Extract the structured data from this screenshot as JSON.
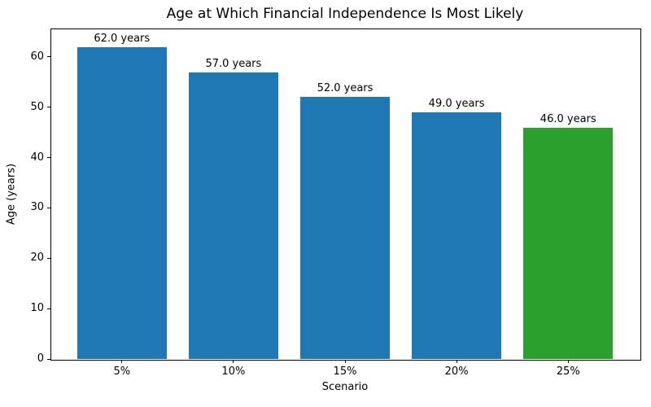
{
  "chart_data": {
    "type": "bar",
    "title": "Age at Which Financial Independence Is Most Likely",
    "xlabel": "Scenario",
    "ylabel": "Age (years)",
    "categories": [
      "5%",
      "10%",
      "15%",
      "20%",
      "25%"
    ],
    "values": [
      62.0,
      57.0,
      52.0,
      49.0,
      46.0
    ],
    "bar_labels": [
      "62.0 years",
      "57.0 years",
      "52.0 years",
      "49.0 years",
      "46.0 years"
    ],
    "bar_colors": [
      "#1f77b4",
      "#1f77b4",
      "#1f77b4",
      "#1f77b4",
      "#2ca02c"
    ],
    "yticks": [
      0,
      10,
      20,
      30,
      40,
      50,
      60
    ],
    "ylim": [
      0,
      65.66
    ],
    "xlim_units": [
      -0.64,
      4.64
    ],
    "bar_width_units": 0.8,
    "grid": false,
    "legend": "none",
    "background_color": "#ffffff",
    "spine_color": "#000000"
  }
}
